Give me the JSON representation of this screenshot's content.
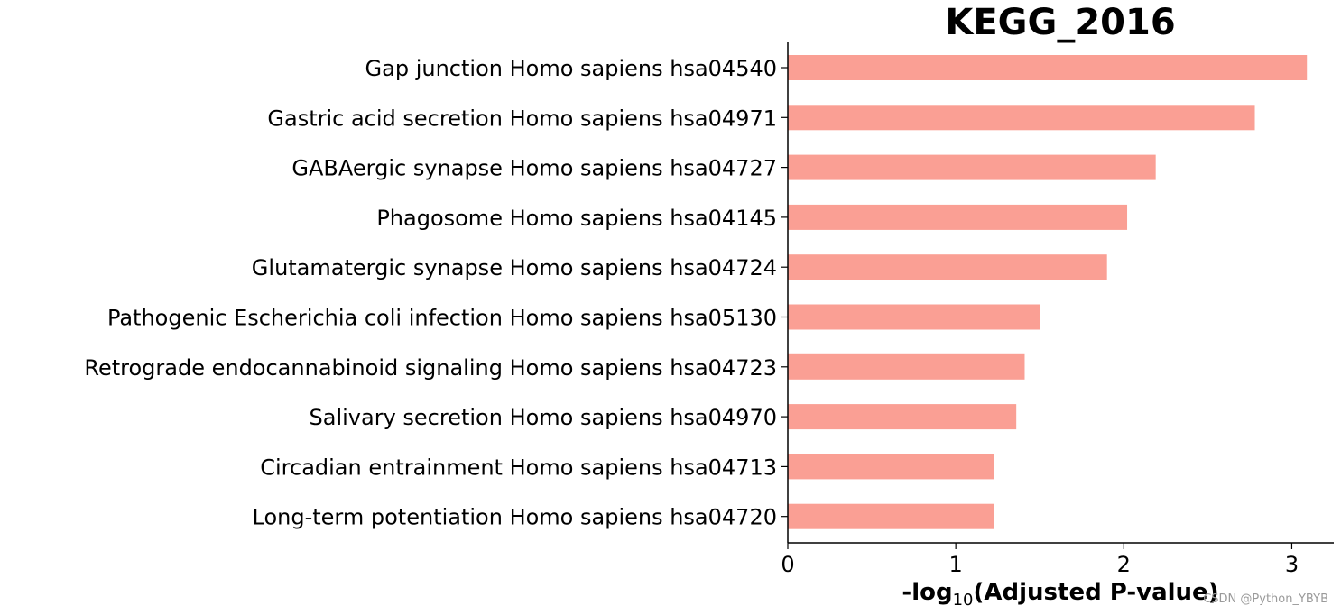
{
  "chart_data": {
    "type": "bar",
    "orientation": "horizontal",
    "title": "KEGG_2016",
    "xlabel_prefix": "-log",
    "xlabel_sub": "10",
    "xlabel_suffix": "(Adjusted P-value)",
    "categories": [
      "Gap junction Homo sapiens hsa04540",
      "Gastric acid secretion Homo sapiens hsa04971",
      "GABAergic synapse Homo sapiens hsa04727",
      "Phagosome Homo sapiens hsa04145",
      "Glutamatergic synapse Homo sapiens hsa04724",
      "Pathogenic Escherichia coli infection Homo sapiens hsa05130",
      "Retrograde endocannabinoid signaling Homo sapiens hsa04723",
      "Salivary secretion Homo sapiens hsa04970",
      "Circadian entrainment Homo sapiens hsa04713",
      "Long-term potentiation Homo sapiens hsa04720"
    ],
    "values": [
      3.09,
      2.78,
      2.19,
      2.02,
      1.9,
      1.5,
      1.41,
      1.36,
      1.23,
      1.23
    ],
    "xlim": [
      0,
      3.25
    ],
    "xticks": [
      0,
      1,
      2,
      3
    ],
    "bar_color": "#fa9f94",
    "grid": false,
    "legend": "none"
  },
  "watermark": "CSDN @Python_YBYB"
}
